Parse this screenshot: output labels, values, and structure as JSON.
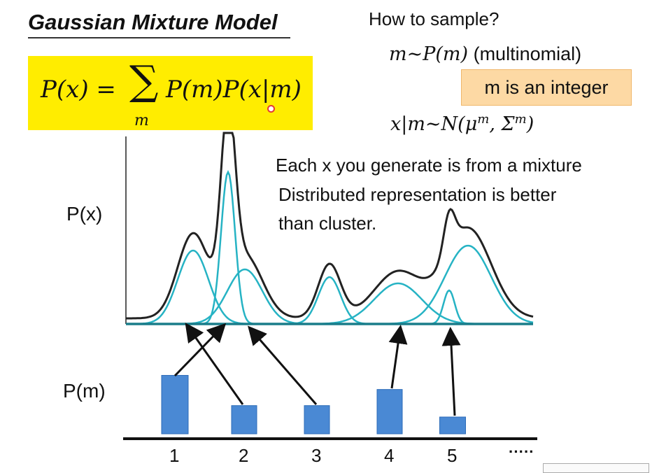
{
  "title": "Gaussian Mixture Model",
  "formula": {
    "lhs": "P(x) =",
    "sum_symbol": "∑",
    "sum_sub": "m",
    "rhs": "P(m)P(x|m)"
  },
  "sampling": {
    "heading": "How to sample?",
    "step1_math": "m∼P(m)",
    "step1_note": "(multinomial)",
    "int_note": "m is an integer",
    "step2_math": "x|m∼N(μ",
    "step2_sup1": "m",
    "step2_mid": ", Σ",
    "step2_sup2": "m",
    "step2_end": ")"
  },
  "notes": {
    "line1": "Each x you generate is from a mixture",
    "line2": "Distributed representation is better",
    "line3": "than cluster."
  },
  "labels": {
    "px": "P(x)",
    "pm": "P(m)",
    "ellipsis": "·····"
  },
  "colors": {
    "highlight": "#ffed00",
    "note_box": "#fdd9a4",
    "component": "#26b3c4",
    "mixture": "#222222",
    "bar": "#4a89d4",
    "cursor": "#e53935"
  },
  "chart_data": {
    "type": "bar",
    "categories": [
      "1",
      "2",
      "3",
      "4",
      "5"
    ],
    "values": [
      0.87,
      0.42,
      0.42,
      0.66,
      0.25
    ],
    "ylabel": "P(m)"
  }
}
